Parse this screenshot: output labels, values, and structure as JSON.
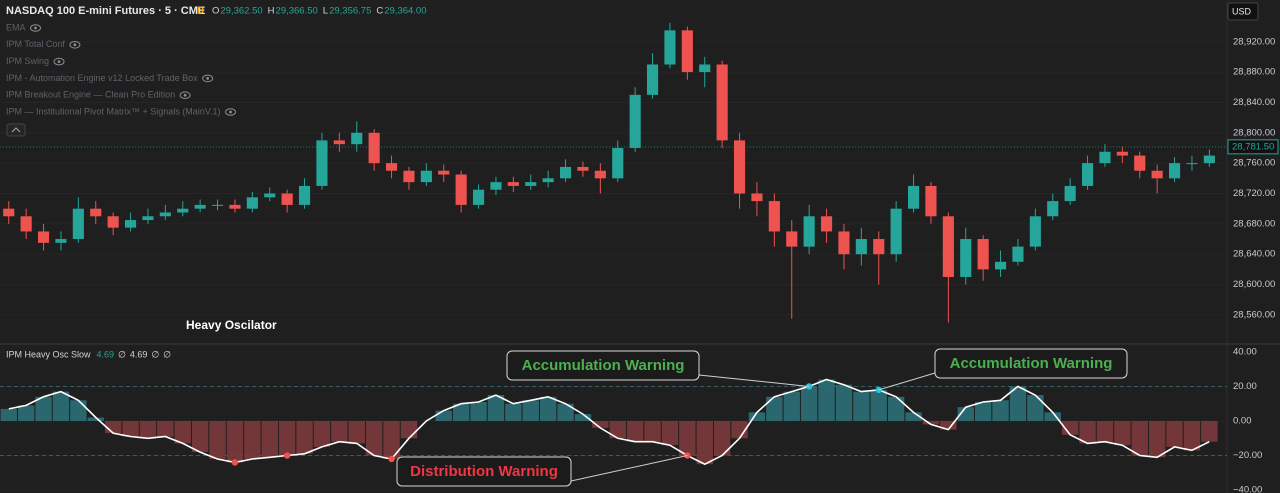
{
  "header": {
    "title": "NASDAQ 100 E-mini Futures · 5 · CME",
    "badge": "D",
    "ohlc": [
      {
        "label": "O",
        "value": "29,362.50"
      },
      {
        "label": "H",
        "value": "29,366.50"
      },
      {
        "label": "L",
        "value": "29,356.75"
      },
      {
        "label": "C",
        "value": "29,364.00"
      }
    ],
    "currency": "USD"
  },
  "indicators": [
    "EMA",
    "IPM Total Conf",
    "IPM Swing",
    "IPM - Automation Engine v12 Locked Trade Box",
    "IPM Breakout Engine — Clean Pro Edition",
    "IPM — Institutional Pivot Matrix™ + Signals (MainV.1)"
  ],
  "chart_data": [
    {
      "type": "candlestick",
      "annotation": "Heavy Oscilator",
      "up_color": "#26a69a",
      "down_color": "#ef5350",
      "open": [
        28700,
        28690,
        28670,
        28655,
        28660,
        28700,
        28690,
        28675,
        28685,
        28690,
        28695,
        28700,
        28705,
        28705,
        28700,
        28715,
        28720,
        28705,
        28730,
        28790,
        28785,
        28800,
        28760,
        28750,
        28735,
        28750,
        28745,
        28705,
        28725,
        28735,
        28730,
        28735,
        28740,
        28755,
        28750,
        28740,
        28780,
        28850,
        28890,
        28935,
        28880,
        28890,
        28790,
        28720,
        28710,
        28670,
        28650,
        28690,
        28670,
        28640,
        28660,
        28640,
        28700,
        28730,
        28690,
        28610,
        28660,
        28620,
        28630,
        28650,
        28690,
        28710,
        28730,
        28760,
        28775,
        28770,
        28750,
        28740,
        28760,
        28760
      ],
      "high": [
        28710,
        28700,
        28680,
        28670,
        28715,
        28710,
        28695,
        28695,
        28700,
        28705,
        28710,
        28712,
        28712,
        28712,
        28722,
        28728,
        28725,
        28740,
        28800,
        28800,
        28815,
        28805,
        28770,
        28755,
        28760,
        28758,
        28750,
        28732,
        28742,
        28742,
        28745,
        28750,
        28765,
        28762,
        28760,
        28790,
        28860,
        28905,
        28945,
        28940,
        28900,
        28895,
        28800,
        28735,
        28720,
        28685,
        28705,
        28700,
        28680,
        28675,
        28670,
        28710,
        28745,
        28735,
        28695,
        28675,
        28665,
        28645,
        28660,
        28700,
        28720,
        28740,
        28770,
        28785,
        28782,
        28775,
        28758,
        28768,
        28770,
        28778
      ],
      "low": [
        28680,
        28660,
        28645,
        28645,
        28655,
        28680,
        28665,
        28670,
        28680,
        28685,
        28690,
        28695,
        28698,
        28695,
        28695,
        28710,
        28695,
        28700,
        28725,
        28775,
        28775,
        28750,
        28740,
        28725,
        28730,
        28735,
        28695,
        28700,
        28718,
        28722,
        28725,
        28728,
        28735,
        28742,
        28720,
        28735,
        28775,
        28845,
        28885,
        28870,
        28860,
        28780,
        28700,
        28690,
        28650,
        28555,
        28640,
        28655,
        28620,
        28625,
        28600,
        28630,
        28695,
        28680,
        28550,
        28600,
        28605,
        28610,
        28625,
        28645,
        28685,
        28705,
        28725,
        28755,
        28760,
        28740,
        28720,
        28735,
        28750,
        28755
      ],
      "close": [
        28690,
        28670,
        28655,
        28660,
        28700,
        28690,
        28675,
        28685,
        28690,
        28695,
        28700,
        28705,
        28705,
        28700,
        28715,
        28720,
        28705,
        28730,
        28790,
        28785,
        28800,
        28760,
        28750,
        28735,
        28750,
        28745,
        28705,
        28725,
        28735,
        28730,
        28735,
        28740,
        28755,
        28750,
        28740,
        28780,
        28850,
        28890,
        28935,
        28880,
        28890,
        28790,
        28720,
        28710,
        28670,
        28650,
        28690,
        28670,
        28640,
        28660,
        28640,
        28700,
        28730,
        28690,
        28610,
        28660,
        28620,
        28630,
        28650,
        28690,
        28710,
        28730,
        28760,
        28775,
        28770,
        28750,
        28740,
        28760,
        28760,
        28770
      ],
      "ylim": [
        28523,
        28975
      ],
      "yticks": [
        {
          "value": 28560,
          "label": "28,560.00"
        },
        {
          "value": 28600,
          "label": "28,600.00"
        },
        {
          "value": 28640,
          "label": "28,640.00"
        },
        {
          "value": 28680,
          "label": "28,680.00"
        },
        {
          "value": 28720,
          "label": "28,720.00"
        },
        {
          "value": 28760,
          "label": "28,760.00"
        },
        {
          "value": 28800,
          "label": "28,800.00"
        },
        {
          "value": 28840,
          "label": "28,840.00"
        },
        {
          "value": 28880,
          "label": "28,880.00"
        },
        {
          "value": 28920,
          "label": "28,920.00"
        }
      ],
      "last_price": {
        "value": 28781.5,
        "label": "28,781.50"
      },
      "last_price_color": "#26a69a"
    },
    {
      "type": "oscillator",
      "status_values": [
        "4.69",
        "∅",
        "4.69",
        "∅",
        "∅"
      ],
      "positive_color": "#2b6f77",
      "negative_color": "#7d3a3c",
      "series": [
        {
          "name": "IPM Heavy Osc Slow",
          "color": "#ffffff",
          "values": [
            7,
            9,
            14,
            17,
            12,
            2,
            -7,
            -9,
            -10,
            -9,
            -13,
            -18,
            -22,
            -24,
            -22,
            -21,
            -20,
            -19,
            -15,
            -12,
            -13,
            -20,
            -22,
            -10,
            0,
            6,
            10,
            11,
            15,
            10,
            12,
            14,
            10,
            4,
            -4,
            -10,
            -12,
            -12,
            -14,
            -20,
            -25,
            -20,
            -10,
            5,
            14,
            17,
            20,
            24,
            21,
            17,
            18,
            14,
            5,
            -2,
            -5,
            8,
            11,
            12,
            20,
            15,
            5,
            -8,
            -13,
            -12,
            -14,
            -20,
            -21,
            -15,
            -17,
            -12
          ]
        },
        {
          "name": "Accumulation Warning",
          "color": "#26c6da",
          "values": [
            null,
            null,
            null,
            null,
            null,
            null,
            null,
            null,
            null,
            null,
            null,
            null,
            null,
            null,
            null,
            null,
            null,
            null,
            null,
            null,
            null,
            null,
            null,
            null,
            null,
            null,
            null,
            null,
            null,
            null,
            null,
            null,
            null,
            null,
            null,
            null,
            null,
            null,
            null,
            null,
            null,
            null,
            null,
            null,
            null,
            null,
            20,
            null,
            null,
            null,
            18,
            null,
            null,
            null,
            null,
            null,
            null,
            null,
            null,
            null,
            null,
            null,
            null,
            null,
            null,
            null,
            null,
            null,
            null,
            null
          ]
        },
        {
          "name": "Distribution Warning",
          "color": "#ef5350",
          "values": [
            null,
            null,
            null,
            null,
            null,
            null,
            null,
            null,
            null,
            null,
            null,
            null,
            null,
            -24,
            null,
            null,
            -20,
            null,
            null,
            null,
            null,
            null,
            -22,
            null,
            null,
            null,
            null,
            null,
            null,
            null,
            null,
            null,
            null,
            null,
            null,
            null,
            null,
            null,
            null,
            -20,
            null,
            null,
            null,
            null,
            null,
            null,
            null,
            null,
            null,
            null,
            null,
            null,
            null,
            null,
            null,
            null,
            null,
            null,
            null,
            null,
            null,
            null,
            null,
            null,
            null,
            null,
            null,
            null,
            null,
            null
          ]
        }
      ],
      "ylim": [
        -41.7,
        44
      ],
      "yticks": [
        {
          "value": 40,
          "label": "40.00"
        },
        {
          "value": 20,
          "label": "20.00"
        },
        {
          "value": 0,
          "label": "0.00"
        },
        {
          "value": -20,
          "label": "−20.00"
        },
        {
          "value": -40,
          "label": "−40.00"
        }
      ],
      "dashed_levels": [
        20,
        -20
      ]
    }
  ]
}
